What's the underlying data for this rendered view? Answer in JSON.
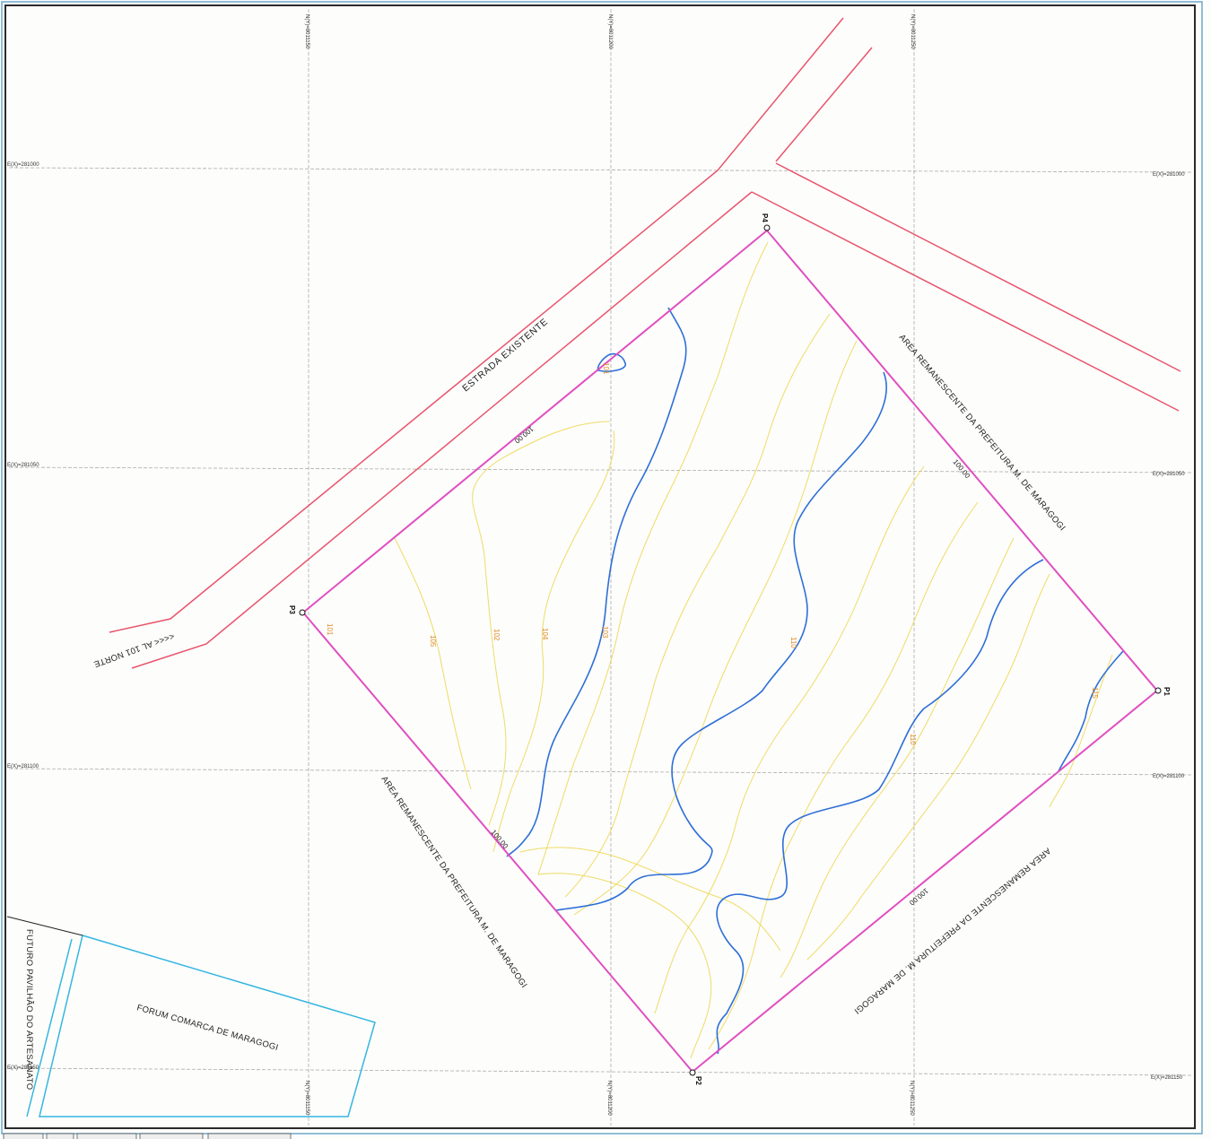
{
  "map": {
    "grid": {
      "top_labels": [
        "N(Y)=8011150",
        "N(Y)=8011200",
        "N(Y)=8011250"
      ],
      "bottom_labels": [
        "N(Y)=8011150",
        "N(Y)=8011200",
        "N(Y)=8011250"
      ],
      "left_labels": [
        "E(X)=281000",
        "E(X)=281050",
        "E(X)=281100",
        "E(X)=281150"
      ],
      "right_labels": [
        "E(X)=281000",
        "E(X)=281050",
        "E(X)=281100",
        "E(X)=281150"
      ]
    },
    "roads": {
      "existing_road_label": "ESTRADA EXISTENTE",
      "highway_label": "<<<< AL 101 NORTE"
    },
    "vertices": [
      "P1",
      "P2",
      "P3",
      "P4"
    ],
    "adjacent_areas": {
      "north_east": "AREA REMANESCENTE DA PREFEITURA M. DE MARAGOGI",
      "south_west": "AREA REMANESCENTE DA PREFEITURA M. DE MARAGOGI",
      "south_east": "AREA REMANESCENTE DA PREFEITURA M. DE MARAGOGI"
    },
    "buildings": {
      "forum": "FORUM COMARCA DE MARAGOGI",
      "pavilion": "FUTURO PAVILHÃO DO ARTESANATO"
    },
    "elevation_labels": [
      "100,00",
      "100,00",
      "100,00",
      "100,00"
    ],
    "contour_labels": [
      "101",
      "101",
      "102",
      "103",
      "104",
      "105",
      "110",
      "110",
      "115"
    ]
  },
  "colors": {
    "road": "#e8556b",
    "parcel": "#e04fc0",
    "contour_minor": "#ecd64a",
    "contour_major": "#2e6fd6",
    "building": "#35b6e0"
  }
}
